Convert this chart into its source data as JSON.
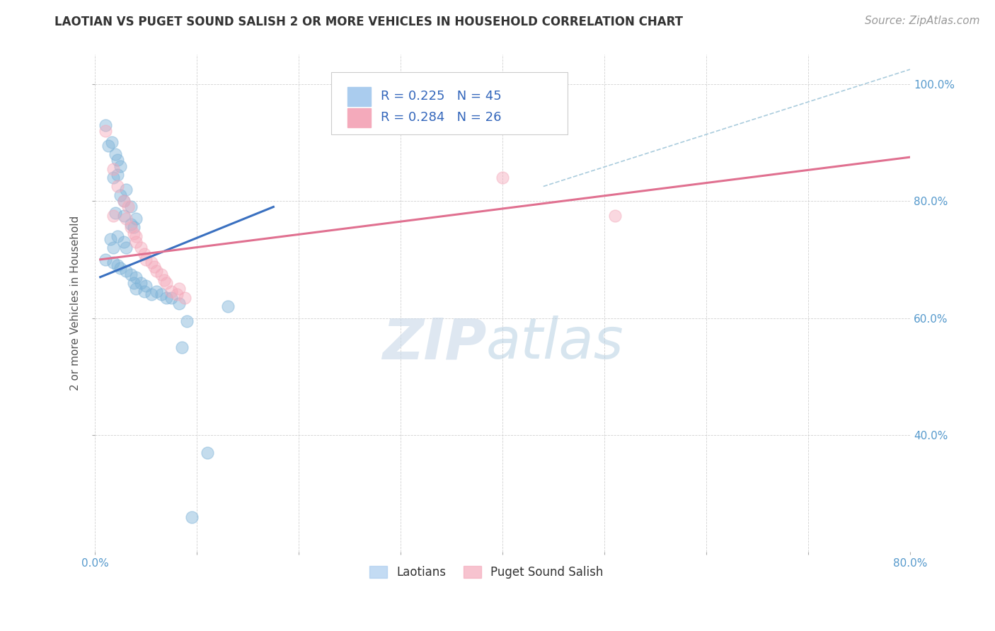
{
  "title": "LAOTIAN VS PUGET SOUND SALISH 2 OR MORE VEHICLES IN HOUSEHOLD CORRELATION CHART",
  "source": "Source: ZipAtlas.com",
  "ylabel": "2 or more Vehicles in Household",
  "xlim": [
    0.0,
    0.8
  ],
  "ylim": [
    0.2,
    1.05
  ],
  "xtick_vals": [
    0.0,
    0.1,
    0.2,
    0.3,
    0.4,
    0.5,
    0.6,
    0.7,
    0.8
  ],
  "xtick_labels_show": {
    "0.0": "0.0%",
    "0.8": "80.0%"
  },
  "ytick_vals": [
    0.4,
    0.6,
    0.8,
    1.0
  ],
  "ytick_labels": [
    "40.0%",
    "60.0%",
    "80.0%",
    "100.0%"
  ],
  "watermark_zip": "ZIP",
  "watermark_atlas": "atlas",
  "legend_blue_R": "R = 0.225",
  "legend_blue_N": "N = 45",
  "legend_pink_R": "R = 0.284",
  "legend_pink_N": "N = 26",
  "blue_label": "Laotians",
  "pink_label": "Puget Sound Salish",
  "blue_color": "#7EB3D8",
  "pink_color": "#F4AABB",
  "blue_scatter": [
    [
      0.01,
      0.93
    ],
    [
      0.013,
      0.895
    ],
    [
      0.016,
      0.9
    ],
    [
      0.02,
      0.88
    ],
    [
      0.022,
      0.87
    ],
    [
      0.025,
      0.86
    ],
    [
      0.018,
      0.84
    ],
    [
      0.022,
      0.845
    ],
    [
      0.03,
      0.82
    ],
    [
      0.028,
      0.8
    ],
    [
      0.025,
      0.81
    ],
    [
      0.035,
      0.79
    ],
    [
      0.02,
      0.78
    ],
    [
      0.028,
      0.775
    ],
    [
      0.035,
      0.76
    ],
    [
      0.04,
      0.77
    ],
    [
      0.038,
      0.755
    ],
    [
      0.015,
      0.735
    ],
    [
      0.022,
      0.74
    ],
    [
      0.028,
      0.73
    ],
    [
      0.018,
      0.72
    ],
    [
      0.03,
      0.72
    ],
    [
      0.01,
      0.7
    ],
    [
      0.018,
      0.695
    ],
    [
      0.022,
      0.69
    ],
    [
      0.025,
      0.685
    ],
    [
      0.03,
      0.68
    ],
    [
      0.035,
      0.675
    ],
    [
      0.04,
      0.67
    ],
    [
      0.038,
      0.66
    ],
    [
      0.04,
      0.65
    ],
    [
      0.045,
      0.66
    ],
    [
      0.05,
      0.655
    ],
    [
      0.048,
      0.645
    ],
    [
      0.055,
      0.64
    ],
    [
      0.06,
      0.645
    ],
    [
      0.065,
      0.64
    ],
    [
      0.07,
      0.635
    ],
    [
      0.075,
      0.635
    ],
    [
      0.082,
      0.625
    ],
    [
      0.13,
      0.62
    ],
    [
      0.09,
      0.595
    ],
    [
      0.085,
      0.55
    ],
    [
      0.11,
      0.37
    ],
    [
      0.095,
      0.26
    ]
  ],
  "pink_scatter": [
    [
      0.01,
      0.92
    ],
    [
      0.018,
      0.855
    ],
    [
      0.022,
      0.825
    ],
    [
      0.028,
      0.8
    ],
    [
      0.032,
      0.79
    ],
    [
      0.018,
      0.775
    ],
    [
      0.03,
      0.77
    ],
    [
      0.035,
      0.755
    ],
    [
      0.038,
      0.745
    ],
    [
      0.04,
      0.74
    ],
    [
      0.04,
      0.73
    ],
    [
      0.045,
      0.72
    ],
    [
      0.048,
      0.71
    ],
    [
      0.05,
      0.7
    ],
    [
      0.055,
      0.695
    ],
    [
      0.058,
      0.688
    ],
    [
      0.06,
      0.68
    ],
    [
      0.065,
      0.675
    ],
    [
      0.068,
      0.665
    ],
    [
      0.07,
      0.66
    ],
    [
      0.075,
      0.645
    ],
    [
      0.08,
      0.64
    ],
    [
      0.082,
      0.65
    ],
    [
      0.088,
      0.635
    ],
    [
      0.4,
      0.84
    ],
    [
      0.51,
      0.775
    ]
  ],
  "blue_line_x": [
    0.005,
    0.175
  ],
  "blue_line_y": [
    0.67,
    0.79
  ],
  "pink_line_x": [
    0.005,
    0.8
  ],
  "pink_line_y": [
    0.7,
    0.875
  ],
  "diag_line_x": [
    0.44,
    0.8
  ],
  "diag_line_y": [
    0.825,
    1.025
  ],
  "title_fontsize": 12,
  "axis_label_fontsize": 11,
  "tick_fontsize": 11,
  "legend_fontsize": 13,
  "source_fontsize": 11
}
